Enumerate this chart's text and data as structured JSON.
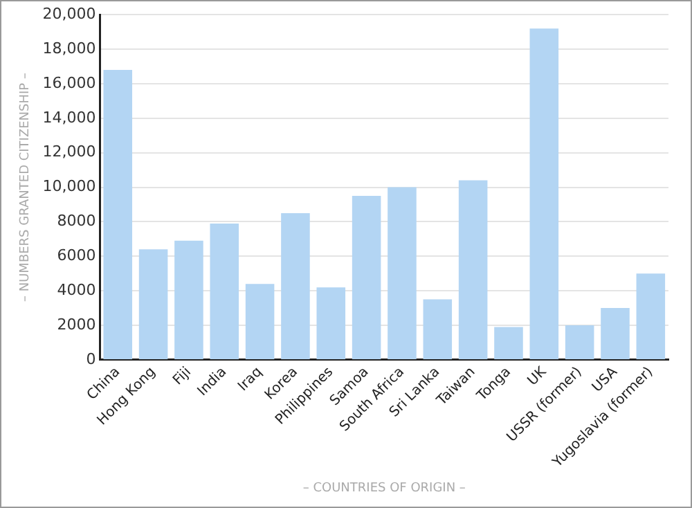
{
  "chart_data": {
    "type": "bar",
    "xlabel": "– COUNTRIES OF ORIGIN –",
    "ylabel": "– NUMBERS GRANTED CITIZENSHIP –",
    "categories": [
      "China",
      "Hong Kong",
      "Fiji",
      "India",
      "Iraq",
      "Korea",
      "Philippines",
      "Samoa",
      "South Africa",
      "Sri Lanka",
      "Taiwan",
      "Tonga",
      "UK",
      "USSR (former)",
      "USA",
      "Yugoslavia (former)"
    ],
    "values": [
      16800,
      6400,
      6900,
      7900,
      4400,
      8500,
      4200,
      9500,
      10000,
      3500,
      10400,
      1900,
      19200,
      2000,
      3000,
      5000
    ],
    "color": "#b3d5f3",
    "ylim": [
      0,
      20000
    ],
    "yticks": [
      0,
      2000,
      4000,
      6000,
      8000,
      {
        "value": 10000,
        "label": "10,000"
      },
      {
        "value": 12000,
        "label": "12,000"
      },
      {
        "value": 14000,
        "label": "14,000"
      },
      {
        "value": 16000,
        "label": "16,000"
      },
      {
        "value": 18000,
        "label": "18,000"
      },
      {
        "value": 20000,
        "label": "20,000"
      }
    ],
    "grid": "y"
  }
}
